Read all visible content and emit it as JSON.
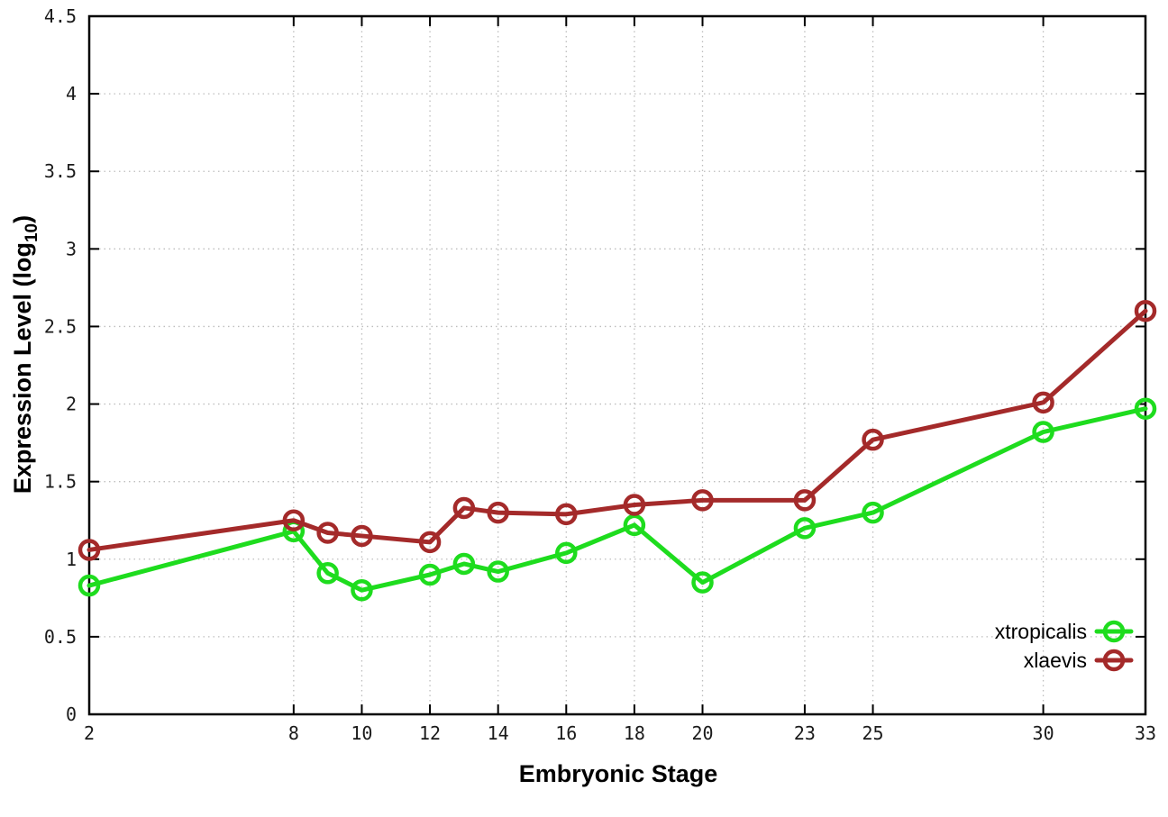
{
  "chart_data": {
    "type": "line",
    "title": "",
    "xlabel": "Embryonic Stage",
    "ylabel": {
      "prefix": "Expression Level (log",
      "sub": "10",
      "suffix": ")"
    },
    "xlim": [
      2,
      33
    ],
    "ylim": [
      0,
      4.5
    ],
    "grid": true,
    "grid_style": "dotted",
    "legend_position": "inside-bottom-right",
    "x_ticks": [
      2,
      8,
      10,
      12,
      14,
      16,
      18,
      20,
      23,
      25,
      30,
      33
    ],
    "x_tick_labels": [
      "2",
      "8",
      "10",
      "12",
      "14",
      "16",
      "18",
      "20",
      "23",
      "25",
      "30",
      "33"
    ],
    "y_ticks": [
      0,
      0.5,
      1,
      1.5,
      2,
      2.5,
      3,
      3.5,
      4,
      4.5
    ],
    "y_tick_labels": [
      "0",
      "0.5",
      "1",
      "1.5",
      "2",
      "2.5",
      "3",
      "3.5",
      "4",
      "4.5"
    ],
    "x": [
      2,
      8,
      9,
      10,
      12,
      13,
      14,
      16,
      18,
      20,
      23,
      25,
      30,
      33
    ],
    "series": [
      {
        "name": "xtropicalis",
        "color": "#1edc1e",
        "marker": "open-circle",
        "values": [
          0.83,
          1.18,
          0.91,
          0.8,
          0.9,
          0.97,
          0.92,
          1.04,
          1.22,
          0.85,
          1.2,
          1.3,
          1.82,
          1.97
        ]
      },
      {
        "name": "xlaevis",
        "color": "#a42a2a",
        "marker": "open-circle",
        "values": [
          1.06,
          1.25,
          1.17,
          1.15,
          1.11,
          1.33,
          1.3,
          1.29,
          1.35,
          1.38,
          1.38,
          1.77,
          2.01,
          2.6
        ]
      }
    ],
    "colors": {
      "axis": "#000000",
      "grid": "#bdbdbd",
      "background": "#ffffff",
      "tick_label": "#1a1a1a"
    }
  }
}
